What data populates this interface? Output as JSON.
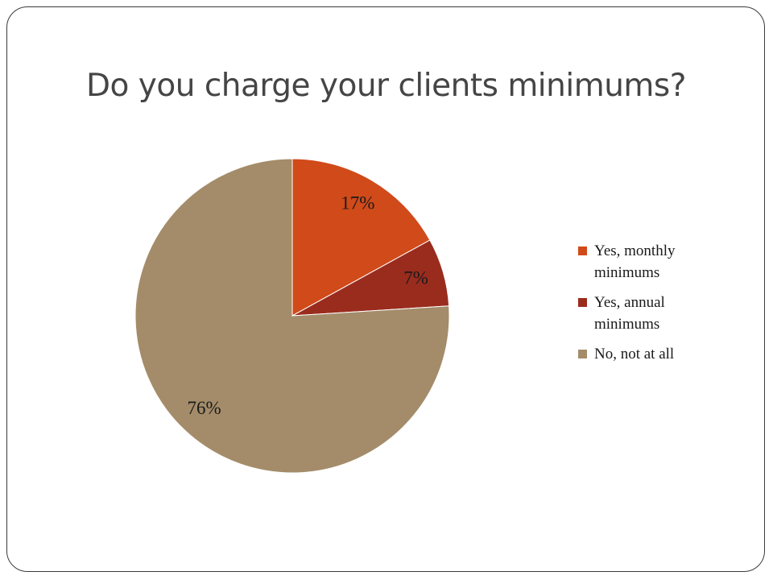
{
  "chart_data": {
    "type": "pie",
    "title": "Do you charge your clients minimums?",
    "categories": [
      "Yes, monthly minimums",
      "Yes, annual minimums",
      "No, not at all"
    ],
    "values": [
      17,
      7,
      76
    ],
    "value_labels": [
      "17%",
      "7%",
      "76%"
    ],
    "colors": [
      "#d14a1a",
      "#9a2c1e",
      "#a48c6a"
    ],
    "legend": "right"
  }
}
